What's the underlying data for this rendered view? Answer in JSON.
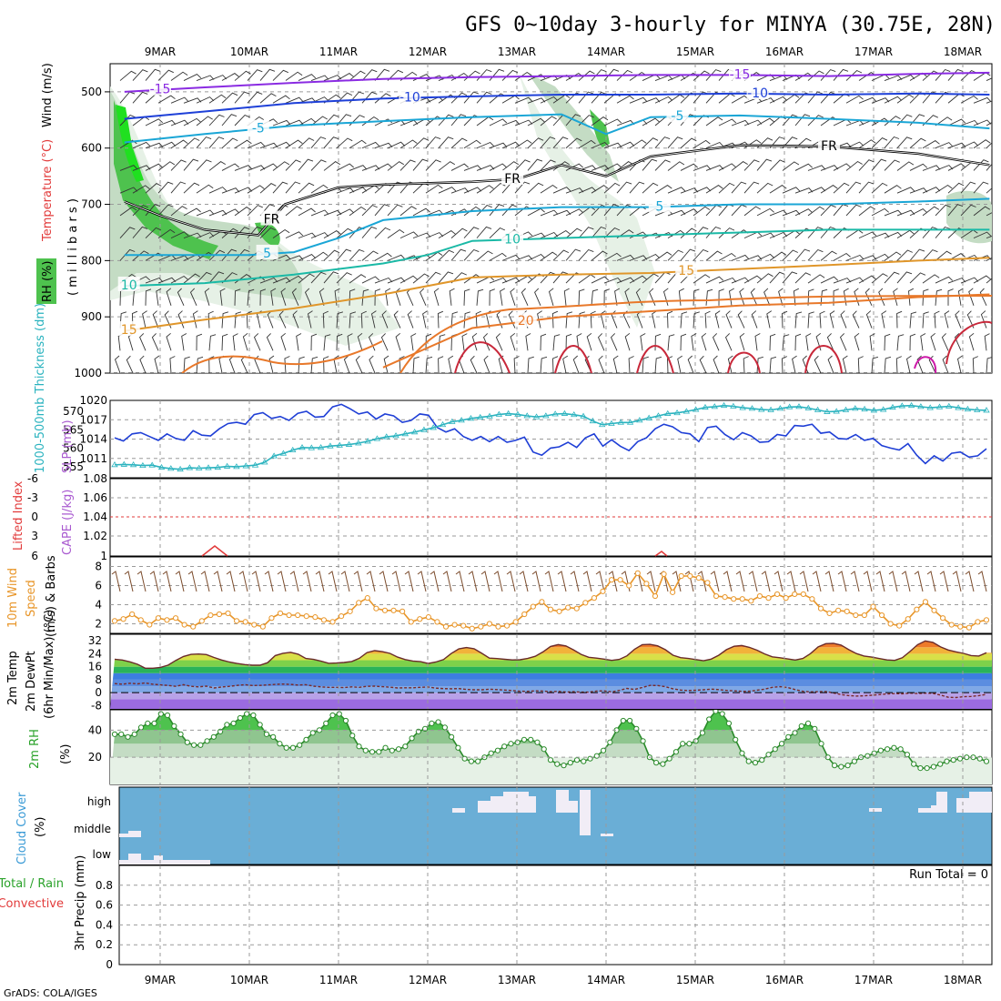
{
  "title": "GFS 0~10day 3-hourly for MINYA (30.75E, 28N)",
  "credit": "GrADS: COLA/IGES",
  "colors": {
    "rh_green": "#4ec24e",
    "temp_purple": "#8a2be2",
    "temp_blue": "#1e40d8",
    "temp_cyan": "#1aa6d6",
    "temp_teal": "#1ab9a6",
    "temp_orange": "#e0962a",
    "temp_red": "#d23a3a",
    "slp_blue": "#1f3fd6",
    "thick_cyan": "#2bb3bf",
    "wind10_orange": "#e8962a",
    "barb_brown": "#7a4a2a",
    "cloud_blue": "#6aaed6",
    "cloud_white": "#f1edf6",
    "rh2m_green": "#2aa22a"
  },
  "chart_data": [
    {
      "type": "contour",
      "panel": "upper_air",
      "ylabel": [
        "RH (%)",
        "Temperature (°C)",
        "Wind (m/s)"
      ],
      "ylabel_right": "( m i l l i b a r s )",
      "x_ticks": [
        "9MAR",
        "10MAR",
        "11MAR",
        "12MAR",
        "13MAR",
        "14MAR",
        "15MAR",
        "16MAR",
        "17MAR",
        "18MAR"
      ],
      "y_ticks": [
        500,
        600,
        700,
        800,
        900,
        1000
      ],
      "ylim": [
        450,
        1000
      ],
      "contour_labels": [
        "-15",
        "-10",
        "-5",
        "FR",
        "5",
        "10",
        "15",
        "20"
      ],
      "isotherms": [
        {
          "label": "-15",
          "day": [
            8.6,
            9.5,
            10.5,
            11.5,
            12.5,
            13.5,
            14.5,
            15.5,
            16.5,
            17.5,
            18.3
          ],
          "mb": [
            500,
            492,
            484,
            477,
            474,
            472,
            470,
            470,
            472,
            468,
            466
          ]
        },
        {
          "label": "-10",
          "day": [
            8.6,
            9.5,
            10.5,
            11.5,
            12.5,
            13.5,
            14.5,
            15.5,
            16.5,
            17.5,
            18.3
          ],
          "mb": [
            548,
            535,
            520,
            512,
            508,
            505,
            505,
            503,
            505,
            503,
            505
          ]
        },
        {
          "label": "-5",
          "day": [
            8.6,
            9.5,
            10.5,
            11.5,
            12.5,
            13.5,
            14.0,
            14.5,
            15.5,
            16.5,
            17.5,
            18.3
          ],
          "mb": [
            590,
            575,
            560,
            552,
            545,
            540,
            575,
            545,
            542,
            548,
            555,
            565
          ]
        },
        {
          "label": "FR",
          "day": [
            8.6,
            9.0,
            9.5,
            10.1,
            10.4,
            11.0,
            11.5,
            12.5,
            13.0,
            13.5,
            14.0,
            14.5,
            15.0,
            15.5,
            16.5,
            17.5,
            18.3
          ],
          "mb": [
            695,
            720,
            745,
            755,
            700,
            670,
            665,
            660,
            655,
            630,
            650,
            615,
            605,
            595,
            597,
            610,
            630
          ]
        },
        {
          "label": "5",
          "day": [
            8.6,
            9.0,
            10.0,
            10.5,
            11.0,
            11.5,
            12.5,
            13.5,
            14.5,
            15.5,
            16.5,
            17.5,
            18.3
          ],
          "mb": [
            790,
            790,
            790,
            785,
            760,
            728,
            712,
            705,
            705,
            700,
            700,
            695,
            690
          ]
        },
        {
          "label": "10",
          "day": [
            8.6,
            9.5,
            10.5,
            11.5,
            12.0,
            12.5,
            13.5,
            14.5,
            15.5,
            16.5,
            17.5,
            18.3
          ],
          "mb": [
            845,
            840,
            825,
            805,
            790,
            765,
            760,
            755,
            750,
            745,
            745,
            745
          ]
        },
        {
          "label": "15",
          "day": [
            8.6,
            9.5,
            10.5,
            11.5,
            12.5,
            13.5,
            14.5,
            15.5,
            16.5,
            17.5,
            18.3
          ],
          "mb": [
            925,
            905,
            885,
            860,
            830,
            825,
            822,
            815,
            808,
            800,
            795
          ]
        },
        {
          "label": "20",
          "day": [
            11.5,
            12.5,
            13.5,
            14.5,
            15.5,
            16.5,
            17.5,
            18.3
          ],
          "mb": [
            990,
            920,
            900,
            890,
            880,
            875,
            865,
            860
          ]
        }
      ]
    },
    {
      "type": "line",
      "panel": "slp_thickness",
      "ylabel_left": "1000-500mb Thickness (dm)",
      "ylabel_right": "SLP (mb)",
      "yticks_left": [
        555,
        560,
        565,
        570
      ],
      "yticks_right": [
        1011,
        1014,
        1017,
        1020
      ],
      "series": [
        {
          "name": "SLP (mb)",
          "values": [
            1014.2,
            1013.7,
            1014.8,
            1015.0,
            1014.4,
            1013.8,
            1014.8,
            1014.1,
            1013.8,
            1015.3,
            1014.6,
            1014.5,
            1015.6,
            1016.4,
            1016.6,
            1016.3,
            1017.8,
            1018.1,
            1017.2,
            1017.5,
            1016.9,
            1018.0,
            1018.3,
            1017.4,
            1017.5,
            1019.0,
            1019.4,
            1018.7,
            1017.9,
            1018.2,
            1017.1,
            1017.9,
            1017.6,
            1016.6,
            1016.9,
            1017.9,
            1017.7,
            1015.8,
            1015.1,
            1015.6,
            1014.4,
            1013.8,
            1014.4,
            1013.6,
            1014.4,
            1013.5,
            1013.8,
            1014.3,
            1012.0,
            1011.5,
            1012.6,
            1012.8,
            1013.5,
            1012.7,
            1014.2,
            1014.8,
            1012.9,
            1013.9,
            1012.9,
            1012.2,
            1013.6,
            1014.2,
            1015.6,
            1016.3,
            1015.9,
            1015.0,
            1014.8,
            1013.6,
            1015.8,
            1016.0,
            1014.7,
            1013.9,
            1015.0,
            1014.5,
            1013.5,
            1013.6,
            1014.7,
            1014.5,
            1016.1,
            1016.0,
            1016.3,
            1014.9,
            1015.1,
            1014.1,
            1014.0,
            1014.7,
            1013.8,
            1014.1,
            1013.0,
            1012.6,
            1012.3,
            1013.3,
            1011.5,
            1010.2,
            1011.4,
            1010.6,
            1011.8,
            1012.0,
            1011.2,
            1011.4,
            1012.5
          ]
        },
        {
          "name": "1000-500mb Thickness (dm)",
          "values": [
            555.5,
            555.6,
            555.5,
            555.3,
            555.4,
            554.8,
            554.5,
            554.3,
            554.7,
            554.6,
            554.7,
            554.8,
            555.1,
            555.0,
            555.2,
            555.4,
            556.2,
            557.9,
            558.6,
            559.5,
            560.2,
            560.1,
            560.2,
            560.6,
            560.8,
            561.0,
            561.4,
            561.9,
            562.6,
            563.1,
            563.4,
            563.9,
            564.4,
            565.0,
            565.6,
            566.4,
            567.2,
            567.6,
            568.1,
            568.4,
            568.7,
            569.2,
            569.4,
            569.2,
            568.8,
            568.5,
            568.8,
            569.3,
            569.4,
            569.1,
            568.7,
            567.4,
            566.4,
            566.7,
            567.0,
            567.0,
            567.6,
            568.2,
            568.8,
            569.4,
            569.6,
            570.0,
            570.5,
            571.1,
            571.3,
            571.6,
            571.4,
            571.0,
            570.8,
            570.5,
            570.4,
            570.8,
            571.2,
            571.3,
            570.9,
            570.4,
            569.9,
            570.0,
            570.4,
            570.8,
            570.6,
            570.3,
            570.5,
            571.1,
            571.5,
            571.6,
            571.3,
            571.0,
            571.2,
            571.4,
            571.0,
            570.6,
            570.4,
            570.3
          ]
        }
      ]
    },
    {
      "type": "line",
      "panel": "cape_li",
      "ylabel_left": "Lifted Index",
      "ylabel_right": "CAPE (J/kg)",
      "yticks_left": [
        "-6",
        "-3",
        "0",
        "3",
        "6"
      ],
      "yticks_right": [
        "1.08",
        "1.06",
        "1.04",
        "1.02",
        "1"
      ]
    },
    {
      "type": "line",
      "panel": "wind10",
      "ylabel": [
        "10m Wind",
        "Speed",
        "(m/s) & Barbs"
      ],
      "yticks": [
        2,
        4,
        6,
        8
      ],
      "ylim": [
        1,
        9
      ],
      "series": [
        {
          "name": "10m Wind Speed",
          "values": [
            2.3,
            2.5,
            3.0,
            2.4,
            1.9,
            2.6,
            2.4,
            2.6,
            1.9,
            1.7,
            2.3,
            2.9,
            3.0,
            3.1,
            2.3,
            2.2,
            1.9,
            1.7,
            2.6,
            3.1,
            2.9,
            2.9,
            2.8,
            2.7,
            2.4,
            2.2,
            2.8,
            3.3,
            4.2,
            4.7,
            3.6,
            3.4,
            3.4,
            3.3,
            2.2,
            2.5,
            2.7,
            2.2,
            1.7,
            1.9,
            1.8,
            1.5,
            1.7,
            2.0,
            1.7,
            1.8,
            2.2,
            3.0,
            3.8,
            4.3,
            3.5,
            3.3,
            3.7,
            3.6,
            4.2,
            4.7,
            5.4,
            6.6,
            6.6,
            6.0,
            7.3,
            6.2,
            4.9,
            7.2,
            5.3,
            7.0,
            7.0,
            6.8,
            6.3,
            4.9,
            4.8,
            4.6,
            4.6,
            4.4,
            4.9,
            4.7,
            5.1,
            4.7,
            5.1,
            5.1,
            4.6,
            3.6,
            3.1,
            3.4,
            3.3,
            2.9,
            2.9,
            3.8,
            2.9,
            2.0,
            1.8,
            2.5,
            3.5,
            4.3,
            3.4,
            2.6,
            1.9,
            1.7,
            1.6,
            2.2,
            2.4
          ]
        }
      ]
    },
    {
      "type": "area",
      "panel": "temp2m",
      "ylabel": [
        "2m Temp",
        "2m DewPt",
        "(6hr Min/Max) (°C)"
      ],
      "yticks": [
        -8,
        0,
        8,
        16,
        24,
        32
      ],
      "series": [
        {
          "name": "2m Temp",
          "values": [
            20.6,
            20.1,
            19.0,
            17.5,
            15.1,
            15.1,
            15.6,
            17.0,
            19.9,
            22.3,
            23.6,
            23.8,
            23.5,
            21.7,
            20.1,
            18.9,
            18.0,
            17.3,
            16.9,
            16.9,
            18.5,
            22.9,
            24.3,
            24.9,
            23.7,
            21.1,
            20.5,
            19.4,
            18.1,
            18.3,
            18.6,
            19.2,
            21.2,
            24.7,
            25.9,
            25.3,
            24.2,
            21.9,
            20.4,
            19.5,
            19.1,
            18.0,
            18.9,
            20.4,
            24.1,
            27.0,
            27.8,
            27.1,
            24.3,
            21.3,
            21.0,
            20.6,
            20.2,
            20.3,
            21.1,
            22.4,
            25.1,
            28.5,
            29.6,
            28.8,
            26.4,
            23.6,
            21.8,
            21.3,
            20.7,
            19.9,
            20.5,
            22.7,
            26.8,
            29.6,
            29.8,
            28.9,
            26.5,
            23.1,
            21.6,
            21.1,
            20.4,
            19.7,
            20.7,
            23.1,
            26.5,
            28.6,
            29.1,
            27.9,
            26.2,
            23.9,
            22.1,
            21.5,
            20.8,
            20.1,
            21.1,
            24.1,
            28.2,
            30.2,
            30.4,
            29.3,
            26.5,
            24.1,
            22.6,
            21.9,
            21.0,
            20.2,
            19.9,
            21.5,
            25.4,
            29.6,
            31.9,
            31.0,
            28.2,
            26.3,
            25.2,
            24.2,
            22.9,
            22.6,
            24.6
          ]
        },
        {
          "name": "2m DewPt",
          "values": [
            5.6,
            5.2,
            5.8,
            5.4,
            6.0,
            5.2,
            4.8,
            4.5,
            3.9,
            4.9,
            3.9,
            3.6,
            4.0,
            2.9,
            3.5,
            3.9,
            4.5,
            4.9,
            4.4,
            4.5,
            4.8,
            5.1,
            5.3,
            5.1,
            4.7,
            4.9,
            4.0,
            3.6,
            3.3,
            3.3,
            3.1,
            3.6,
            3.3,
            3.9,
            4.0,
            3.7,
            3.4,
            2.9,
            3.0,
            3.0,
            3.3,
            3.5,
            2.8,
            2.5,
            2.4,
            2.5,
            2.0,
            1.8,
            1.8,
            2.1,
            1.9,
            1.6,
            1.3,
            0.9,
            0.8,
            1.1,
            1.0,
            0.6,
            0.8,
            0.4,
            0.6,
            0.3,
            0.3,
            1.0,
            1.1,
            0.5,
            1.4,
            2.6,
            2.0,
            3.2,
            4.5,
            4.4,
            3.7,
            2.4,
            1.6,
            1.3,
            1.5,
            1.8,
            2.2,
            1.9,
            1.4,
            1.1,
            0.8,
            0.9,
            1.5,
            2.2,
            3.3,
            3.7,
            3.2,
            1.9,
            0.8,
            0.5,
            0.6,
            0.7,
            -0.1,
            -1.2,
            -1.8,
            -2.1,
            -1.9,
            -1.6,
            -1.2,
            -0.8,
            -0.6,
            -0.7,
            -0.3,
            -0.5,
            -0.3,
            -0.4,
            -1.5,
            -2.8,
            -3.0,
            -2.5,
            -2.3,
            -1.8,
            -1.1
          ]
        }
      ]
    },
    {
      "type": "area",
      "panel": "rh2m",
      "ylabel": [
        "2m RH",
        "(%)"
      ],
      "yticks": [
        20,
        40
      ],
      "ylim": [
        0,
        55
      ],
      "series": [
        {
          "name": "2m RH",
          "values": [
            37,
            37,
            35,
            37,
            42,
            45,
            45,
            52,
            51,
            43,
            37,
            31,
            29,
            29,
            32,
            35,
            39,
            44,
            45,
            49,
            52,
            51,
            44,
            37,
            35,
            30,
            27,
            27,
            29,
            33,
            38,
            40,
            45,
            51,
            52,
            47,
            36,
            28,
            25,
            24,
            24,
            27,
            25,
            26,
            28,
            34,
            39,
            41,
            45,
            46,
            42,
            35,
            27,
            19,
            17,
            17,
            20,
            23,
            25,
            28,
            30,
            31,
            33,
            33,
            31,
            26,
            18,
            15,
            14,
            16,
            18,
            17,
            19,
            21,
            25,
            31,
            40,
            47,
            47,
            41,
            32,
            20,
            16,
            15,
            19,
            24,
            30,
            30,
            32,
            38,
            48,
            54,
            52,
            45,
            33,
            23,
            17,
            16,
            18,
            22,
            26,
            30,
            35,
            38,
            43,
            45,
            41,
            30,
            20,
            14,
            13,
            14,
            17,
            20,
            21,
            23,
            25,
            26,
            27,
            26,
            22,
            15,
            12,
            12,
            13,
            15,
            17,
            18,
            19,
            20,
            20,
            19,
            17
          ]
        }
      ]
    },
    {
      "type": "heatmap",
      "panel": "cloud_cover",
      "ylabel": [
        "Cloud Cover",
        "(%)"
      ],
      "row_labels": [
        "high",
        "middle",
        "low"
      ]
    },
    {
      "type": "bar",
      "panel": "precip",
      "ylabel": [
        "Total / Rain",
        "Convective",
        "3hr Precip (mm)"
      ],
      "yticks": [
        "0",
        "0.2",
        "0.4",
        "0.6",
        "0.8"
      ],
      "ylim": [
        0,
        1
      ],
      "annotation": "Run Total = 0",
      "values": []
    }
  ]
}
